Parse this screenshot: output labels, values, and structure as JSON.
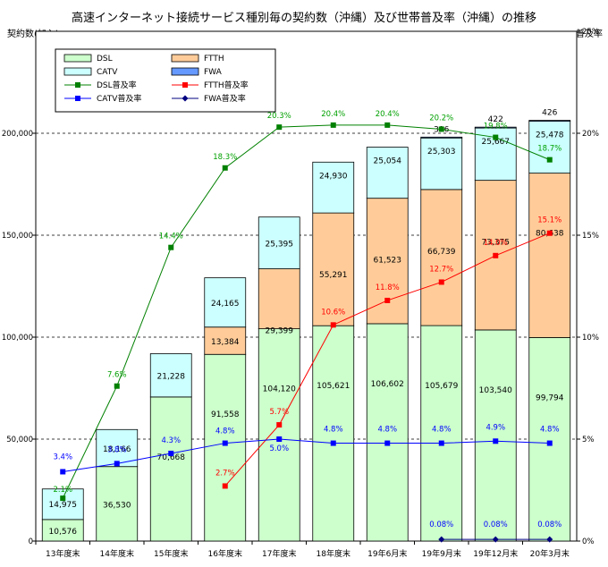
{
  "chart_data": {
    "type": "bar",
    "title": "高速インターネット接続サービス種別毎の契約数（沖縄）及び世帯普及率（沖縄）の推移",
    "ylabel": "契約数(加入)",
    "y2label": "普及率",
    "ylim": [
      0,
      250000
    ],
    "y2lim": [
      0,
      25
    ],
    "yticks": [
      "0",
      "50,000",
      "100,000",
      "150,000",
      "200,000"
    ],
    "y2ticks": [
      "0%",
      "5%",
      "10%",
      "15%",
      "20%",
      "25%"
    ],
    "categories": [
      "13年度末",
      "14年度末",
      "15年度末",
      "16年度末",
      "17年度末",
      "18年度末",
      "19年6月末",
      "19年9月末",
      "19年12月末",
      "20年3月末"
    ],
    "bar_series": [
      {
        "name": "DSL",
        "color": "#ccffcc",
        "values": [
          10576,
          36530,
          70668,
          91558,
          104120,
          105621,
          106602,
          105679,
          103540,
          99794
        ],
        "labels": [
          "10,576",
          "36,530",
          "70,668",
          "91,558",
          "104,120",
          "105,621",
          "106,602",
          "105,679",
          "103,540",
          "99,794"
        ]
      },
      {
        "name": "FTTH",
        "color": "#ffcc99",
        "values": [
          0,
          0,
          0,
          13384,
          29399,
          55291,
          61523,
          66739,
          73375,
          80638
        ],
        "labels": [
          "",
          "",
          "",
          "13,384",
          "29,399",
          "55,291",
          "61,523",
          "66,739",
          "73,375",
          "80,638"
        ]
      },
      {
        "name": "CATV",
        "color": "#ccffff",
        "values": [
          14975,
          18166,
          21228,
          24165,
          25395,
          24930,
          25054,
          25303,
          25667,
          25478
        ],
        "labels": [
          "14,975",
          "18,166",
          "21,228",
          "24,165",
          "25,395",
          "24,930",
          "25,054",
          "25,303",
          "25,667",
          "25,478"
        ]
      },
      {
        "name": "FWA",
        "color": "#6699ff",
        "values": [
          0,
          0,
          0,
          0,
          0,
          0,
          0,
          396,
          422,
          426
        ],
        "labels": [
          "",
          "",
          "",
          "",
          "",
          "",
          "",
          "396",
          "422",
          "426"
        ]
      }
    ],
    "line_series": [
      {
        "name": "DSL普及率",
        "color": "#008000",
        "label_color": "#00a000",
        "marker": "square",
        "values": [
          2.1,
          7.6,
          14.4,
          18.3,
          20.3,
          20.4,
          20.4,
          20.2,
          19.8,
          18.7
        ],
        "labels": [
          "2.1%",
          "7.6%",
          "14.4%",
          "18.3%",
          "20.3%",
          "20.4%",
          "20.4%",
          "20.2%",
          "19.8%",
          "18.7%"
        ]
      },
      {
        "name": "FTTH普及率",
        "color": "#ff0000",
        "label_color": "#ff0000",
        "marker": "square",
        "values": [
          null,
          null,
          null,
          2.7,
          5.7,
          10.6,
          11.8,
          12.7,
          14.0,
          15.1
        ],
        "labels": [
          "",
          "",
          "",
          "2.7%",
          "5.7%",
          "10.6%",
          "11.8%",
          "12.7%",
          "14.0%",
          "15.1%"
        ]
      },
      {
        "name": "CATV普及率",
        "color": "#0000ff",
        "label_color": "#0000ff",
        "marker": "square",
        "values": [
          3.4,
          3.8,
          4.3,
          4.8,
          5.0,
          4.8,
          4.8,
          4.8,
          4.9,
          4.8
        ],
        "labels": [
          "3.4%",
          "3.8%",
          "4.3%",
          "4.8%",
          "5.0%",
          "4.8%",
          "4.8%",
          "4.8%",
          "4.9%",
          "4.8%"
        ]
      },
      {
        "name": "FWA普及率",
        "color": "#000080",
        "label_color": "#0000ff",
        "marker": "diamond",
        "values": [
          null,
          null,
          null,
          null,
          null,
          null,
          null,
          0.08,
          0.08,
          0.08
        ],
        "labels": [
          "",
          "",
          "",
          "",
          "",
          "",
          "",
          "0.08%",
          "0.08%",
          "0.08%"
        ]
      }
    ],
    "legend": {
      "placement": "top-left",
      "entries": [
        "DSL",
        "FTTH",
        "CATV",
        "FWA",
        "DSL普及率",
        "FTTH普及率",
        "CATV普及率",
        "FWA普及率"
      ]
    }
  }
}
